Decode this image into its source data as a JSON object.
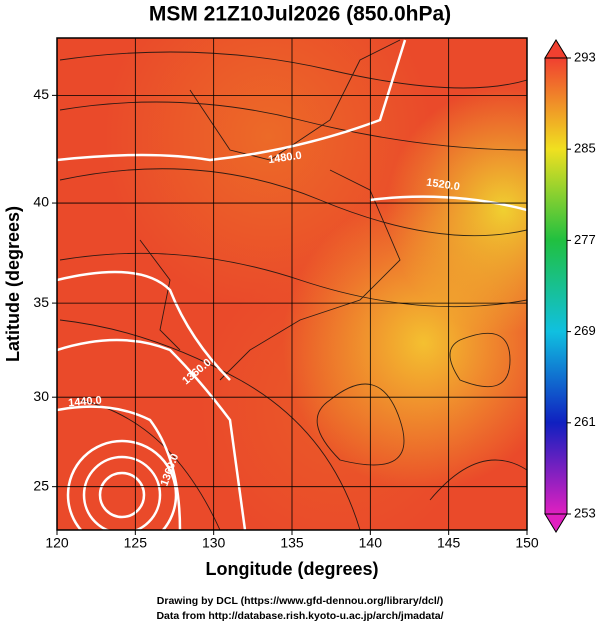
{
  "chart_data": {
    "type": "map",
    "title": "MSM 21Z10Jul2026 (850.0hPa)",
    "xlabel": "Longitude (degrees)",
    "ylabel": "Latitude  (degrees)",
    "xlim": [
      120,
      150
    ],
    "ylim": [
      22.5,
      47.5
    ],
    "projection": "mercator",
    "xticks": [
      120,
      125,
      130,
      135,
      140,
      145,
      150
    ],
    "yticks": [
      25,
      30,
      35,
      40,
      45
    ],
    "grid": true,
    "colorbar": {
      "lim": [
        253,
        293
      ],
      "ticks": [
        253,
        261,
        269,
        277,
        285,
        293
      ],
      "colors": [
        "#e020c0",
        "#1020c0",
        "#10c0e0",
        "#20c040",
        "#f0e020",
        "#f04030"
      ]
    },
    "contour_labels": [
      "1480.0",
      "1520.0",
      "1360.0",
      "1440.0",
      "1360.0"
    ],
    "footer": [
      "Drawing by DCL (https://www.gfd-dennou.org/library/dcl/)",
      "Data from http://database.rish.kyoto-u.ac.jp/arch/jmadata/"
    ]
  }
}
